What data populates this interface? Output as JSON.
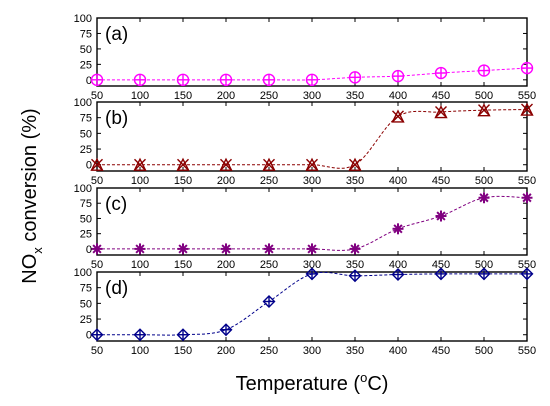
{
  "chart_data": {
    "type": "scatter",
    "xlabel_main": "Temperature (",
    "xlabel_sup": "o",
    "xlabel_end": "C)",
    "ylabel_main": "NO",
    "ylabel_sub": "x",
    "ylabel_end": " conversion (%)",
    "x": [
      50,
      100,
      150,
      200,
      250,
      300,
      350,
      400,
      450,
      500,
      550
    ],
    "x_ticks": [
      "50",
      "100",
      "150",
      "200",
      "250",
      "300",
      "350",
      "400",
      "450",
      "500",
      "550"
    ],
    "xlim": [
      50,
      550
    ],
    "ylim": [
      -10,
      100
    ],
    "y_ticks": [
      "0",
      "25",
      "50",
      "75",
      "100"
    ],
    "panels": [
      {
        "label": "(a)",
        "color": "#ff00ff",
        "marker": "circle-plus",
        "values": [
          0,
          0,
          0,
          0,
          0,
          0,
          4,
          6,
          11,
          15,
          19
        ]
      },
      {
        "label": "(b)",
        "color": "#8b0000",
        "marker": "triangle-x",
        "values": [
          0,
          0,
          0,
          0,
          0,
          0,
          0,
          77,
          84,
          87,
          88
        ]
      },
      {
        "label": "(c)",
        "color": "#800080",
        "marker": "star",
        "values": [
          0,
          0,
          0,
          0,
          0,
          0,
          0,
          33,
          54,
          84,
          84
        ]
      },
      {
        "label": "(d)",
        "color": "#00008b",
        "marker": "diamond-plus",
        "values": [
          0,
          0,
          0,
          8,
          53,
          97,
          94,
          96,
          97,
          97,
          97
        ]
      }
    ]
  }
}
